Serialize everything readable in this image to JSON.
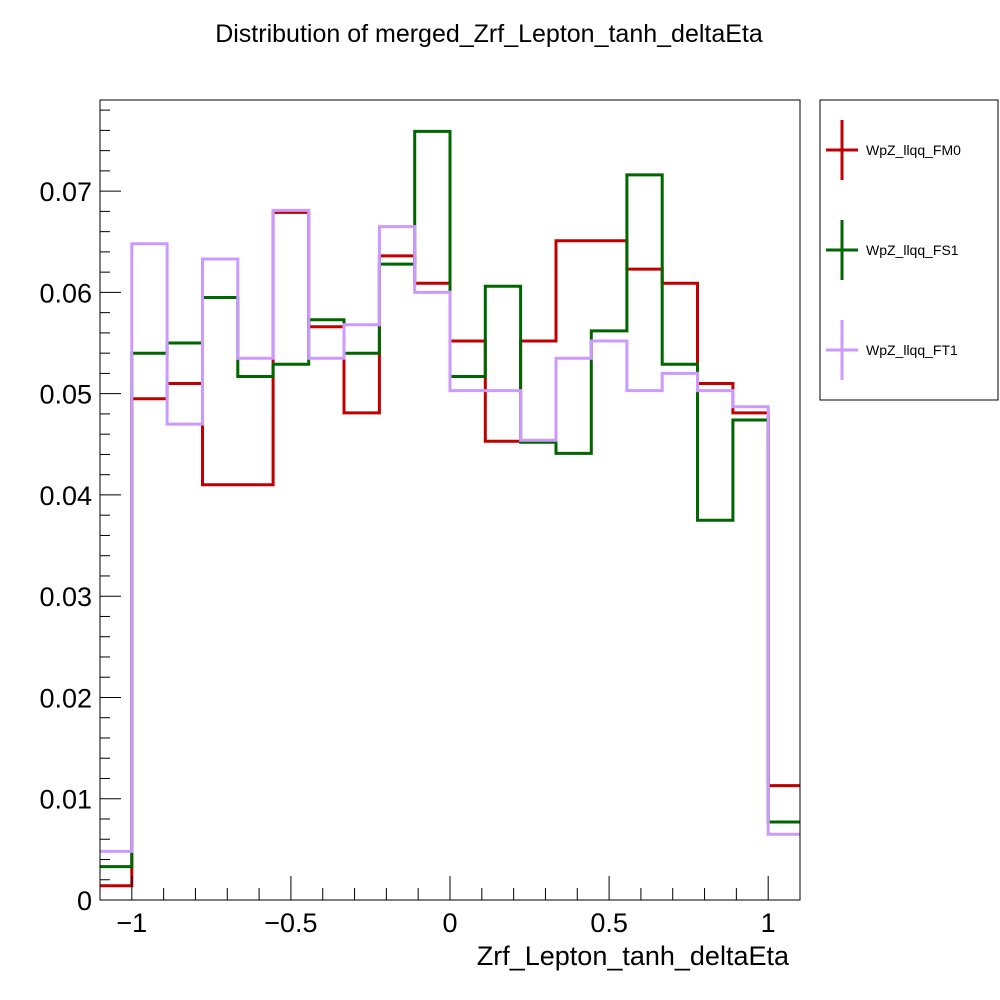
{
  "chart_data": {
    "type": "line",
    "style": "step-histogram",
    "title": "Distribution of merged_Zrf_Lepton_tanh_deltaEta",
    "xlabel": "Zrf_Lepton_tanh_deltaEta",
    "ylabel": "",
    "xlim": [
      -1.1,
      1.1
    ],
    "ylim": [
      0,
      0.079
    ],
    "bin_edges": [
      -1.1,
      -1.0,
      -0.889,
      -0.778,
      -0.667,
      -0.556,
      -0.444,
      -0.333,
      -0.222,
      -0.111,
      0.0,
      0.111,
      0.222,
      0.333,
      0.444,
      0.556,
      0.667,
      0.778,
      0.889,
      1.0,
      1.1
    ],
    "x_ticks": [
      {
        "value": -1,
        "label": "−1"
      },
      {
        "value": -0.5,
        "label": "−0.5"
      },
      {
        "value": 0,
        "label": "0"
      },
      {
        "value": 0.5,
        "label": "0.5"
      },
      {
        "value": 1,
        "label": "1"
      }
    ],
    "y_ticks": [
      {
        "value": 0,
        "label": "0"
      },
      {
        "value": 0.01,
        "label": "0.01"
      },
      {
        "value": 0.02,
        "label": "0.02"
      },
      {
        "value": 0.03,
        "label": "0.03"
      },
      {
        "value": 0.04,
        "label": "0.04"
      },
      {
        "value": 0.05,
        "label": "0.05"
      },
      {
        "value": 0.06,
        "label": "0.06"
      },
      {
        "value": 0.07,
        "label": "0.07"
      }
    ],
    "grid": false,
    "legend_position": "outside-right-top",
    "series": [
      {
        "name": "WpZ_llqq_FM0",
        "color": "#c00000",
        "values": [
          0.0014,
          0.0495,
          0.051,
          0.041,
          0.041,
          0.0679,
          0.0566,
          0.0481,
          0.0636,
          0.0609,
          0.0552,
          0.0453,
          0.0552,
          0.0651,
          0.0651,
          0.0623,
          0.0609,
          0.051,
          0.0481,
          0.0113
        ]
      },
      {
        "name": "WpZ_llqq_FS1",
        "color": "#006600",
        "values": [
          0.0033,
          0.054,
          0.055,
          0.0595,
          0.0517,
          0.0529,
          0.0573,
          0.054,
          0.0628,
          0.0759,
          0.0517,
          0.0606,
          0.0452,
          0.0441,
          0.0562,
          0.0716,
          0.0529,
          0.0375,
          0.0474,
          0.0077
        ]
      },
      {
        "name": "WpZ_llqq_FT1",
        "color": "#cc99ff",
        "values": [
          0.0048,
          0.0648,
          0.047,
          0.0633,
          0.0535,
          0.0681,
          0.0535,
          0.0568,
          0.0665,
          0.06,
          0.0503,
          0.0503,
          0.0454,
          0.0535,
          0.0552,
          0.0503,
          0.052,
          0.0503,
          0.0487,
          0.0065
        ]
      }
    ]
  }
}
